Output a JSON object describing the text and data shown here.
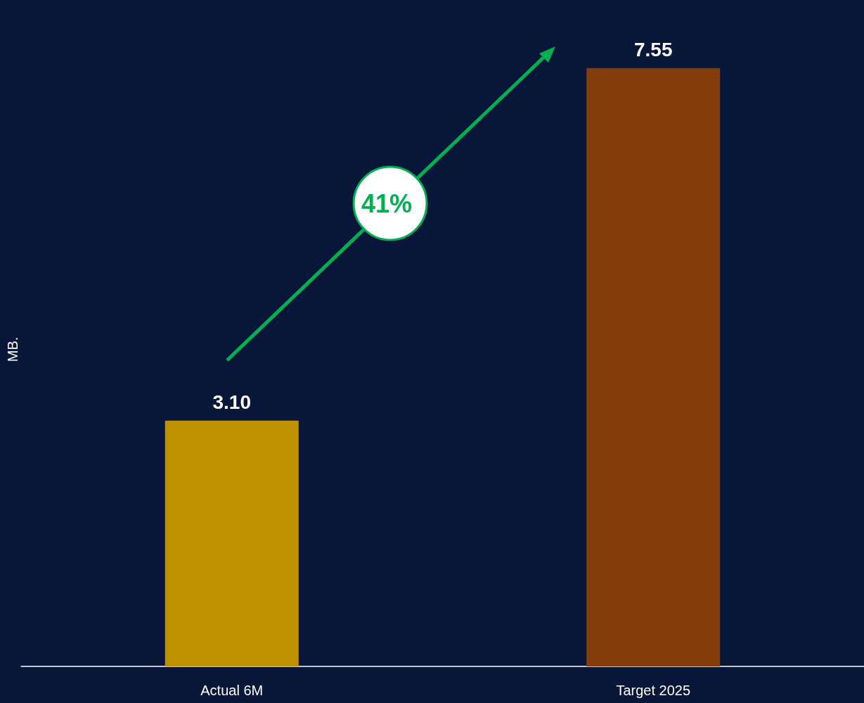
{
  "chart_data": {
    "type": "bar",
    "ylabel": "MB.",
    "categories": [
      "Actual 6M",
      "Target 2025"
    ],
    "values": [
      3.1,
      7.55
    ],
    "colors": [
      "#bf9000",
      "#843c0c"
    ],
    "value_labels": [
      "3.10",
      "7.55"
    ],
    "annotations": [
      "41%"
    ]
  }
}
